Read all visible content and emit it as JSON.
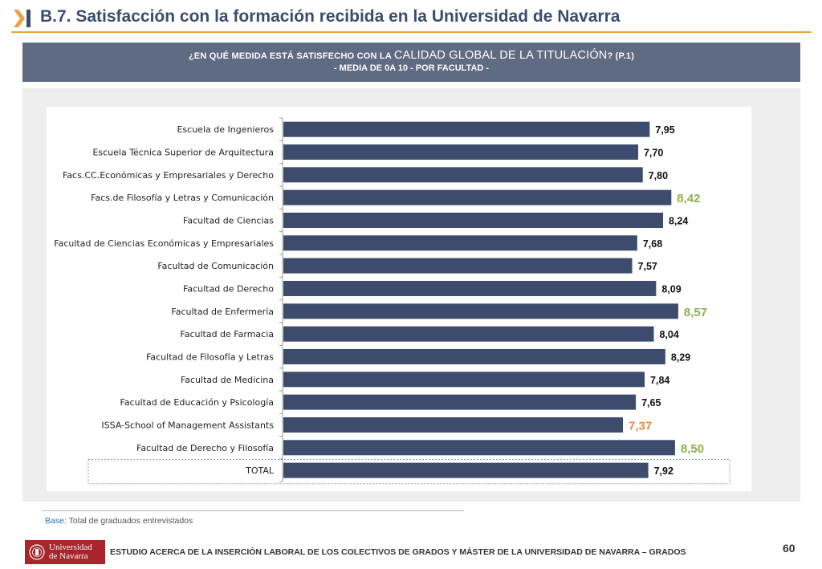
{
  "header": {
    "title": "B.7. Satisfacción con la formación recibida en la Universidad de Navarra"
  },
  "banner": {
    "question_pre": "¿EN QUÉ MEDIDA ESTÁ SATISFECHO CON LA ",
    "question_big": "CALIDAD GLOBAL DE LA TITULACIÓN",
    "question_post": "? (P.1)",
    "subtitle": "- MEDIA DE 0A 10 - POR FACULTAD -"
  },
  "chart_data": {
    "type": "bar",
    "orientation": "horizontal",
    "categories": [
      "Escuela de Ingenieros",
      "Escuela Técnica Superior de Arquitectura",
      "Facs.CC.Económicas y Empresariales y Derecho",
      "Facs.de Filosofía y Letras y Comunicación",
      "Facultad de Ciencias",
      "Facultad de Ciencias Económicas y Empresariales",
      "Facultad de Comunicación",
      "Facultad de Derecho",
      "Facultad de Enfermería",
      "Facultad de Farmacia",
      "Facultad de Filosofía y Letras",
      "Facultad de Medicina",
      "Facultad de Educación y Psicología",
      "ISSA-School of Management Assistants",
      "Facultad de Derecho y Filosofía",
      "TOTAL"
    ],
    "values": [
      7.95,
      7.7,
      7.8,
      8.42,
      8.24,
      7.68,
      7.57,
      8.09,
      8.57,
      8.04,
      8.29,
      7.84,
      7.65,
      7.37,
      8.5,
      7.92
    ],
    "value_labels": [
      "7,95",
      "7,70",
      "7,80",
      "8,42",
      "8,24",
      "7,68",
      "7,57",
      "8,09",
      "8,57",
      "8,04",
      "8,29",
      "7,84",
      "7,65",
      "7,37",
      "8,50",
      "7,92"
    ],
    "highlight": [
      "normal",
      "normal",
      "normal",
      "high",
      "normal",
      "normal",
      "normal",
      "normal",
      "high",
      "normal",
      "normal",
      "normal",
      "normal",
      "low",
      "high",
      "normal"
    ],
    "colors": {
      "bar": "#3d4b6d",
      "label_normal": "#111111",
      "label_high": "#8cb04a",
      "label_low": "#f0883c"
    },
    "xlim": [
      0,
      10
    ],
    "grid": false,
    "title": "",
    "xlabel": "",
    "ylabel": ""
  },
  "footnote": {
    "label": "Base",
    "text": ": Total de graduados entrevistados"
  },
  "footer": {
    "logo_line1": "Universidad",
    "logo_line2": "de Navarra",
    "study": "ESTUDIO ACERCA DE LA INSERCIÓN LABORAL DE LOS COLECTIVOS DE GRADOS Y MÁSTER DE LA UNIVERSIDAD DE NAVARRA – GRADOS",
    "page": "60"
  }
}
